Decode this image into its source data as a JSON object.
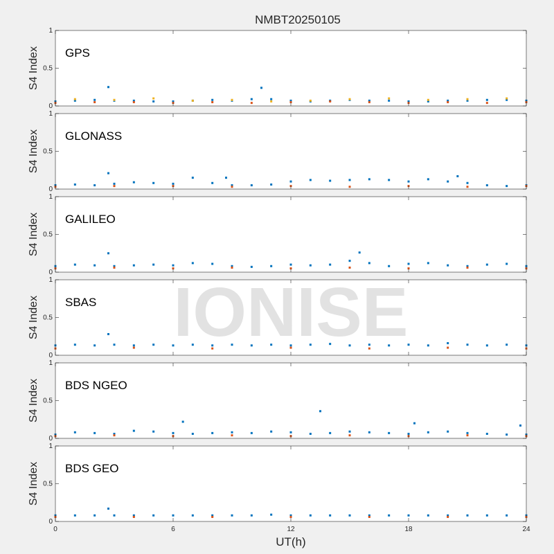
{
  "watermark": "IONISE",
  "chart_data": {
    "type": "scatter",
    "title": "NMBT20250105",
    "xlabel": "UT(h)",
    "ylabel": "S4 Index",
    "xlim": [
      0,
      24
    ],
    "ylim": [
      0,
      1
    ],
    "xticks": [
      "0",
      "6",
      "12",
      "18",
      "24"
    ],
    "yticks": [
      "0",
      "0.5",
      "1"
    ],
    "grid": false,
    "colors": [
      "#0072BD",
      "#D95319",
      "#EDB120",
      "#7E2F8E",
      "#77AC30",
      "#4DBEEE",
      "#A2142F"
    ],
    "panels": [
      {
        "label": "GPS",
        "series": [
          {
            "x": [
              0,
              1,
              2,
              2.7,
              3,
              4,
              5,
              6,
              7,
              8,
              9,
              10,
              10.5,
              11,
              12,
              13,
              14,
              15,
              16,
              17,
              18,
              19,
              20,
              21,
              22,
              23,
              24
            ],
            "y": [
              0.06,
              0.07,
              0.08,
              0.25,
              0.07,
              0.07,
              0.06,
              0.06,
              0.07,
              0.08,
              0.07,
              0.09,
              0.24,
              0.09,
              0.07,
              0.06,
              0.07,
              0.08,
              0.07,
              0.07,
              0.06,
              0.06,
              0.07,
              0.07,
              0.08,
              0.08,
              0.07
            ]
          },
          {
            "x": [
              0,
              2,
              4,
              6,
              8,
              10,
              12,
              14,
              16,
              18,
              20,
              22,
              24
            ],
            "y": [
              0.04,
              0.05,
              0.05,
              0.04,
              0.05,
              0.04,
              0.05,
              0.06,
              0.05,
              0.04,
              0.05,
              0.04,
              0.05
            ]
          },
          {
            "x": [
              1,
              3,
              5,
              7,
              9,
              11,
              13,
              15,
              17,
              19,
              21,
              23
            ],
            "y": [
              0.09,
              0.08,
              0.1,
              0.07,
              0.08,
              0.06,
              0.07,
              0.09,
              0.1,
              0.08,
              0.09,
              0.1
            ]
          }
        ]
      },
      {
        "label": "GLONASS",
        "series": [
          {
            "x": [
              0,
              1,
              2,
              2.7,
              3,
              4,
              5,
              6,
              7,
              8,
              8.7,
              9,
              10,
              11,
              12,
              13,
              14,
              15,
              16,
              17,
              18,
              19,
              20,
              20.5,
              21,
              22,
              23,
              24
            ],
            "y": [
              0.05,
              0.06,
              0.05,
              0.21,
              0.07,
              0.09,
              0.08,
              0.07,
              0.15,
              0.08,
              0.15,
              0.05,
              0.05,
              0.06,
              0.1,
              0.12,
              0.11,
              0.12,
              0.13,
              0.12,
              0.1,
              0.13,
              0.1,
              0.17,
              0.08,
              0.05,
              0.04,
              0.05
            ]
          },
          {
            "x": [
              0,
              3,
              6,
              9,
              12,
              15,
              18,
              21,
              24
            ],
            "y": [
              0.03,
              0.04,
              0.04,
              0.03,
              0.04,
              0.03,
              0.04,
              0.03,
              0.04
            ]
          }
        ]
      },
      {
        "label": "GALILEO",
        "series": [
          {
            "x": [
              0,
              1,
              2,
              2.7,
              3,
              4,
              5,
              6,
              7,
              8,
              9,
              10,
              11,
              12,
              13,
              14,
              15,
              15.5,
              16,
              17,
              18,
              19,
              20,
              21,
              22,
              23,
              24
            ],
            "y": [
              0.08,
              0.1,
              0.09,
              0.25,
              0.08,
              0.09,
              0.1,
              0.09,
              0.12,
              0.11,
              0.08,
              0.07,
              0.08,
              0.1,
              0.09,
              0.1,
              0.15,
              0.26,
              0.12,
              0.08,
              0.11,
              0.12,
              0.09,
              0.08,
              0.1,
              0.11,
              0.08
            ]
          },
          {
            "x": [
              0,
              3,
              6,
              9,
              12,
              15,
              18,
              21,
              24
            ],
            "y": [
              0.05,
              0.06,
              0.05,
              0.06,
              0.05,
              0.06,
              0.05,
              0.06,
              0.05
            ]
          }
        ]
      },
      {
        "label": "SBAS",
        "series": [
          {
            "x": [
              0,
              1,
              2,
              2.7,
              3,
              4,
              5,
              6,
              7,
              8,
              9,
              10,
              11,
              12,
              13,
              14,
              15,
              16,
              17,
              18,
              19,
              20,
              21,
              22,
              23,
              24
            ],
            "y": [
              0.13,
              0.14,
              0.13,
              0.28,
              0.14,
              0.13,
              0.14,
              0.13,
              0.14,
              0.13,
              0.14,
              0.13,
              0.14,
              0.13,
              0.14,
              0.15,
              0.13,
              0.14,
              0.13,
              0.14,
              0.13,
              0.16,
              0.14,
              0.13,
              0.14,
              0.13
            ]
          },
          {
            "x": [
              0,
              4,
              8,
              12,
              16,
              20,
              24
            ],
            "y": [
              0.09,
              0.1,
              0.09,
              0.1,
              0.09,
              0.1,
              0.09
            ]
          }
        ]
      },
      {
        "label": "BDS NGEO",
        "series": [
          {
            "x": [
              0,
              1,
              2,
              3,
              4,
              5,
              6,
              6.5,
              7,
              8,
              9,
              10,
              11,
              12,
              13,
              13.5,
              14,
              15,
              16,
              17,
              18,
              18.3,
              19,
              20,
              21,
              22,
              23,
              23.7,
              24
            ],
            "y": [
              0.05,
              0.08,
              0.07,
              0.06,
              0.1,
              0.09,
              0.07,
              0.22,
              0.06,
              0.07,
              0.08,
              0.07,
              0.09,
              0.08,
              0.06,
              0.36,
              0.07,
              0.09,
              0.08,
              0.07,
              0.06,
              0.2,
              0.08,
              0.09,
              0.07,
              0.06,
              0.05,
              0.17,
              0.05
            ]
          },
          {
            "x": [
              0,
              3,
              6,
              9,
              12,
              15,
              18,
              21,
              24
            ],
            "y": [
              0.03,
              0.04,
              0.03,
              0.04,
              0.03,
              0.04,
              0.03,
              0.04,
              0.03
            ]
          }
        ]
      },
      {
        "label": "BDS GEO",
        "series": [
          {
            "x": [
              0,
              1,
              2,
              2.7,
              3,
              4,
              5,
              6,
              7,
              8,
              9,
              10,
              11,
              12,
              13,
              14,
              15,
              16,
              17,
              18,
              19,
              20,
              21,
              22,
              23,
              24
            ],
            "y": [
              0.08,
              0.08,
              0.08,
              0.17,
              0.08,
              0.08,
              0.08,
              0.08,
              0.08,
              0.08,
              0.08,
              0.08,
              0.09,
              0.08,
              0.08,
              0.08,
              0.08,
              0.08,
              0.08,
              0.08,
              0.08,
              0.08,
              0.08,
              0.08,
              0.08,
              0.08
            ]
          },
          {
            "x": [
              0,
              4,
              8,
              12,
              16,
              20,
              24
            ],
            "y": [
              0.06,
              0.06,
              0.06,
              0.06,
              0.06,
              0.06,
              0.06
            ]
          }
        ]
      }
    ]
  }
}
